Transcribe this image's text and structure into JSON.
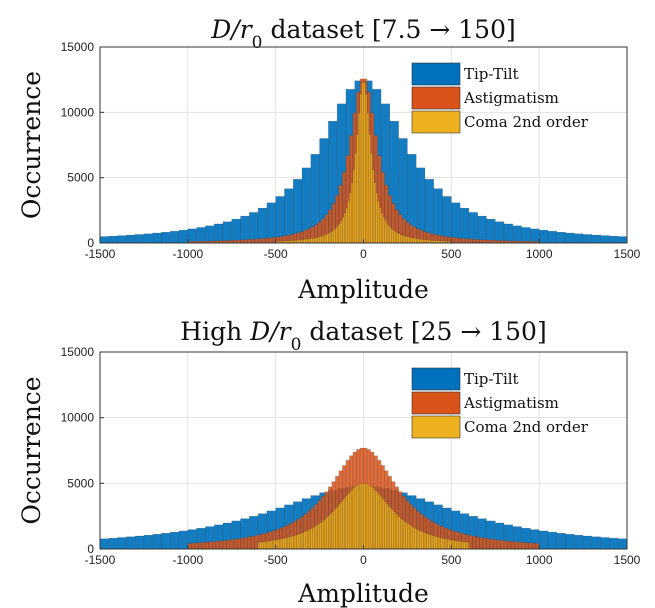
{
  "colors": {
    "tip_tilt": "#0072BD",
    "astigmatism": "#D95319",
    "coma": "#EDB120"
  },
  "chart_data": [
    {
      "type": "bar",
      "title_plain": "D/r0 dataset [7.5 → 150]",
      "title_parts": {
        "pre": "",
        "var": "D/r",
        "sub": "0",
        "post": " dataset [7.5 → 150]"
      },
      "xlabel": "Amplitude",
      "ylabel": "Occurrence",
      "xlim": [
        -1500,
        1500
      ],
      "ylim": [
        0,
        15000
      ],
      "xticks": [
        "-1500",
        "-1000",
        "-500",
        "0",
        "500",
        "1000",
        "1500"
      ],
      "yticks": [
        "0",
        "5000",
        "10000",
        "15000"
      ],
      "grid": true,
      "legend_position": "top-right",
      "series": [
        {
          "name": "Tip-Tilt",
          "shape": "histogram",
          "peak": 12500,
          "center": 0,
          "bin_width": 50,
          "half_width": 300,
          "x_range": [
            -1500,
            1500
          ]
        },
        {
          "name": "Astigmatism",
          "shape": "histogram",
          "peak": 12700,
          "center": 0,
          "bin_width": 20,
          "half_width": 95,
          "x_range": [
            -1000,
            1000
          ]
        },
        {
          "name": "Coma 2nd order",
          "shape": "histogram",
          "peak": 12400,
          "center": 0,
          "bin_width": 10,
          "half_width": 50,
          "x_range": [
            -500,
            500
          ]
        }
      ]
    },
    {
      "type": "bar",
      "title_plain": "High D/r0 dataset [25 → 150]",
      "title_parts": {
        "pre": "High ",
        "var": "D/r",
        "sub": "0",
        "post": " dataset [25 → 150]"
      },
      "xlabel": "Amplitude",
      "ylabel": "Occurrence",
      "xlim": [
        -1500,
        1500
      ],
      "ylim": [
        0,
        15000
      ],
      "xticks": [
        "-1500",
        "-1000",
        "-500",
        "0",
        "500",
        "1000",
        "1500"
      ],
      "yticks": [
        "0",
        "5000",
        "10000",
        "15000"
      ],
      "grid": true,
      "legend_position": "top-right",
      "series": [
        {
          "name": "Tip-Tilt",
          "shape": "histogram",
          "peak": 4800,
          "center": 0,
          "bin_width": 50,
          "half_width": 650,
          "x_range": [
            -1500,
            1500
          ]
        },
        {
          "name": "Astigmatism",
          "shape": "histogram",
          "peak": 7700,
          "center": 0,
          "bin_width": 20,
          "half_width": 240,
          "x_range": [
            -1000,
            1000
          ]
        },
        {
          "name": "Coma 2nd order",
          "shape": "histogram",
          "peak": 5000,
          "center": 0,
          "bin_width": 10,
          "half_width": 200,
          "x_range": [
            -600,
            600
          ]
        }
      ]
    }
  ]
}
